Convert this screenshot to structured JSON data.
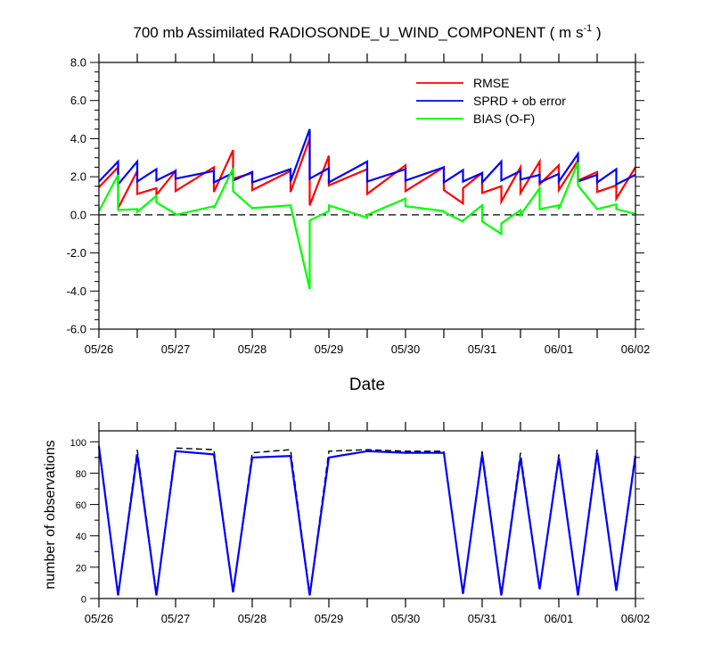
{
  "chart_data": [
    {
      "type": "line",
      "title": "700 mb Assimilated RADIOSONDE_U_WIND_COMPONENT ( m s",
      "title_sup": "-1",
      "title_end": " )",
      "xlabel": "Date",
      "ylabel": "",
      "xlim": [
        0,
        7
      ],
      "ylim": [
        -6.0,
        8.0
      ],
      "x_tick_labels": [
        "05/26",
        "05/27",
        "05/28",
        "05/29",
        "05/30",
        "05/31",
        "06/01",
        "06/02"
      ],
      "y_tick_labels": [
        "-6.0",
        "-4.0",
        "-2.0",
        "0.0",
        "2.0",
        "4.0",
        "6.0",
        "8.0"
      ],
      "reference_line": 0,
      "legend_position": "top-right",
      "series": [
        {
          "name": "RMSE",
          "color": "#ff0000",
          "segments": [
            {
              "x": [
                0.0,
                0.25
              ],
              "y": [
                1.45,
                2.5
              ]
            },
            {
              "x": [
                0.25,
                0.5
              ],
              "y": [
                0.35,
                2.3
              ]
            },
            {
              "x": [
                0.5,
                0.75
              ],
              "y": [
                1.1,
                1.4
              ]
            },
            {
              "x": [
                0.75,
                1.0
              ],
              "y": [
                1.05,
                2.3
              ]
            },
            {
              "x": [
                1.0,
                1.5
              ],
              "y": [
                1.25,
                2.5
              ]
            },
            {
              "x": [
                1.5,
                1.75
              ],
              "y": [
                1.2,
                3.4
              ]
            },
            {
              "x": [
                1.75,
                2.0
              ],
              "y": [
                1.9,
                2.2
              ]
            },
            {
              "x": [
                2.0,
                2.5
              ],
              "y": [
                1.3,
                2.3
              ]
            },
            {
              "x": [
                2.5,
                2.75
              ],
              "y": [
                1.2,
                4.0
              ]
            },
            {
              "x": [
                2.75,
                3.0
              ],
              "y": [
                0.5,
                3.1
              ]
            },
            {
              "x": [
                3.0,
                3.5
              ],
              "y": [
                1.55,
                2.4
              ]
            },
            {
              "x": [
                3.5,
                4.0
              ],
              "y": [
                1.1,
                2.6
              ]
            },
            {
              "x": [
                4.0,
                4.5
              ],
              "y": [
                1.25,
                2.5
              ]
            },
            {
              "x": [
                4.5,
                4.75
              ],
              "y": [
                1.3,
                0.6
              ]
            },
            {
              "x": [
                4.75,
                5.0
              ],
              "y": [
                1.4,
                2.2
              ]
            },
            {
              "x": [
                5.0,
                5.25
              ],
              "y": [
                1.15,
                1.5
              ]
            },
            {
              "x": [
                5.25,
                5.5
              ],
              "y": [
                0.7,
                2.5
              ]
            },
            {
              "x": [
                5.5,
                5.75
              ],
              "y": [
                1.15,
                2.8
              ]
            },
            {
              "x": [
                5.75,
                6.0
              ],
              "y": [
                1.6,
                2.6
              ]
            },
            {
              "x": [
                6.0,
                6.25
              ],
              "y": [
                1.3,
                2.85
              ]
            },
            {
              "x": [
                6.25,
                6.5
              ],
              "y": [
                1.8,
                2.25
              ]
            },
            {
              "x": [
                6.5,
                6.75
              ],
              "y": [
                1.2,
                1.55
              ]
            },
            {
              "x": [
                6.75,
                7.0
              ],
              "y": [
                0.85,
                2.5
              ]
            }
          ]
        },
        {
          "name": "SPRD + ob error",
          "color": "#0000ff",
          "segments": [
            {
              "x": [
                0.0,
                0.25
              ],
              "y": [
                1.75,
                2.8
              ]
            },
            {
              "x": [
                0.25,
                0.5
              ],
              "y": [
                1.6,
                2.8
              ]
            },
            {
              "x": [
                0.5,
                0.75
              ],
              "y": [
                1.75,
                2.4
              ]
            },
            {
              "x": [
                0.75,
                1.0
              ],
              "y": [
                1.8,
                2.3
              ]
            },
            {
              "x": [
                1.0,
                1.5
              ],
              "y": [
                1.9,
                2.3
              ]
            },
            {
              "x": [
                1.5,
                1.75
              ],
              "y": [
                1.7,
                2.2
              ]
            },
            {
              "x": [
                1.75,
                2.0
              ],
              "y": [
                1.8,
                2.25
              ]
            },
            {
              "x": [
                2.0,
                2.5
              ],
              "y": [
                1.7,
                2.4
              ]
            },
            {
              "x": [
                2.5,
                2.75
              ],
              "y": [
                1.75,
                4.5
              ]
            },
            {
              "x": [
                2.75,
                3.0
              ],
              "y": [
                1.9,
                2.45
              ]
            },
            {
              "x": [
                3.0,
                3.5
              ],
              "y": [
                1.7,
                2.8
              ]
            },
            {
              "x": [
                3.5,
                4.0
              ],
              "y": [
                1.75,
                2.4
              ]
            },
            {
              "x": [
                4.0,
                4.5
              ],
              "y": [
                1.8,
                2.5
              ]
            },
            {
              "x": [
                4.5,
                4.75
              ],
              "y": [
                1.7,
                2.35
              ]
            },
            {
              "x": [
                4.75,
                5.0
              ],
              "y": [
                1.75,
                2.2
              ]
            },
            {
              "x": [
                5.0,
                5.25
              ],
              "y": [
                1.7,
                2.8
              ]
            },
            {
              "x": [
                5.25,
                5.5
              ],
              "y": [
                1.8,
                2.3
              ]
            },
            {
              "x": [
                5.5,
                5.75
              ],
              "y": [
                1.85,
                2.1
              ]
            },
            {
              "x": [
                5.75,
                6.0
              ],
              "y": [
                1.7,
                2.15
              ]
            },
            {
              "x": [
                6.0,
                6.25
              ],
              "y": [
                1.75,
                3.2
              ]
            },
            {
              "x": [
                6.25,
                6.5
              ],
              "y": [
                1.75,
                2.1
              ]
            },
            {
              "x": [
                6.5,
                6.75
              ],
              "y": [
                1.7,
                2.4
              ]
            },
            {
              "x": [
                6.75,
                7.0
              ],
              "y": [
                1.6,
                2.1
              ]
            }
          ]
        },
        {
          "name": "BIAS (O-F)",
          "color": "#00ff00",
          "segments": [
            {
              "x": [
                0.0,
                0.25
              ],
              "y": [
                0.2,
                2.1
              ]
            },
            {
              "x": [
                0.25,
                0.5
              ],
              "y": [
                0.25,
                0.3
              ]
            },
            {
              "x": [
                0.5,
                0.75
              ],
              "y": [
                0.15,
                1.0
              ]
            },
            {
              "x": [
                0.75,
                1.0
              ],
              "y": [
                0.65,
                0.05
              ]
            },
            {
              "x": [
                1.0,
                1.5
              ],
              "y": [
                0.0,
                0.45
              ]
            },
            {
              "x": [
                1.5,
                1.75
              ],
              "y": [
                0.35,
                2.45
              ]
            },
            {
              "x": [
                1.75,
                2.0
              ],
              "y": [
                1.25,
                0.35
              ]
            },
            {
              "x": [
                2.0,
                2.5
              ],
              "y": [
                0.35,
                0.5
              ]
            },
            {
              "x": [
                2.5,
                2.75
              ],
              "y": [
                0.5,
                -3.9
              ]
            },
            {
              "x": [
                2.75,
                3.0
              ],
              "y": [
                -0.3,
                0.2
              ]
            },
            {
              "x": [
                3.0,
                3.5
              ],
              "y": [
                0.5,
                -0.15
              ]
            },
            {
              "x": [
                3.5,
                4.0
              ],
              "y": [
                0.0,
                0.85
              ]
            },
            {
              "x": [
                4.0,
                4.5
              ],
              "y": [
                0.45,
                0.2
              ]
            },
            {
              "x": [
                4.5,
                4.75
              ],
              "y": [
                0.15,
                -0.35
              ]
            },
            {
              "x": [
                4.75,
                5.0
              ],
              "y": [
                -0.3,
                0.5
              ]
            },
            {
              "x": [
                5.0,
                5.25
              ],
              "y": [
                -0.35,
                -1.0
              ]
            },
            {
              "x": [
                5.25,
                5.5
              ],
              "y": [
                -0.45,
                0.25
              ]
            },
            {
              "x": [
                5.5,
                5.75
              ],
              "y": [
                0.0,
                1.4
              ]
            },
            {
              "x": [
                5.75,
                6.0
              ],
              "y": [
                0.3,
                0.5
              ]
            },
            {
              "x": [
                6.0,
                6.25
              ],
              "y": [
                0.3,
                2.75
              ]
            },
            {
              "x": [
                6.25,
                6.5
              ],
              "y": [
                1.55,
                0.3
              ]
            },
            {
              "x": [
                6.5,
                6.75
              ],
              "y": [
                0.3,
                0.55
              ]
            },
            {
              "x": [
                6.75,
                7.0
              ],
              "y": [
                0.3,
                0.05
              ]
            }
          ]
        }
      ]
    },
    {
      "type": "line",
      "title": "",
      "xlabel": "",
      "ylabel": "number of observations",
      "xlim": [
        0,
        7
      ],
      "ylim": [
        0,
        107
      ],
      "x_tick_labels": [
        "05/26",
        "05/27",
        "05/28",
        "05/29",
        "05/30",
        "05/31",
        "06/01",
        "06/02"
      ],
      "y_tick_labels": [
        "0",
        "20",
        "40",
        "60",
        "80",
        "100"
      ],
      "series": [
        {
          "name": "",
          "style": "dashed",
          "color": "#000000",
          "x": [
            0.0,
            0.25,
            0.5,
            0.75,
            1.0,
            1.5,
            1.75,
            2.0,
            2.5,
            2.75,
            3.0,
            3.5,
            4.0,
            4.5,
            4.75,
            5.0,
            5.25,
            5.5,
            5.75,
            6.0,
            6.25,
            6.5,
            6.75,
            7.0
          ],
          "y": [
            98,
            3,
            95,
            3,
            96,
            95,
            4,
            93,
            95,
            3,
            94,
            95,
            94,
            94,
            3,
            94,
            3,
            93,
            6,
            92,
            3,
            95,
            6,
            93
          ]
        },
        {
          "name": "",
          "style": "solid",
          "color": "#0000ff",
          "x": [
            0.0,
            0.25,
            0.5,
            0.75,
            1.0,
            1.5,
            1.75,
            2.0,
            2.5,
            2.75,
            3.0,
            3.5,
            4.0,
            4.5,
            4.75,
            5.0,
            5.25,
            5.5,
            5.75,
            6.0,
            6.25,
            6.5,
            6.75,
            7.0
          ],
          "y": [
            97,
            2,
            92,
            2,
            94,
            92,
            4,
            90,
            91,
            2,
            90,
            94,
            93,
            93,
            3,
            92,
            2,
            90,
            6,
            90,
            2,
            93,
            5,
            91
          ]
        }
      ]
    }
  ]
}
